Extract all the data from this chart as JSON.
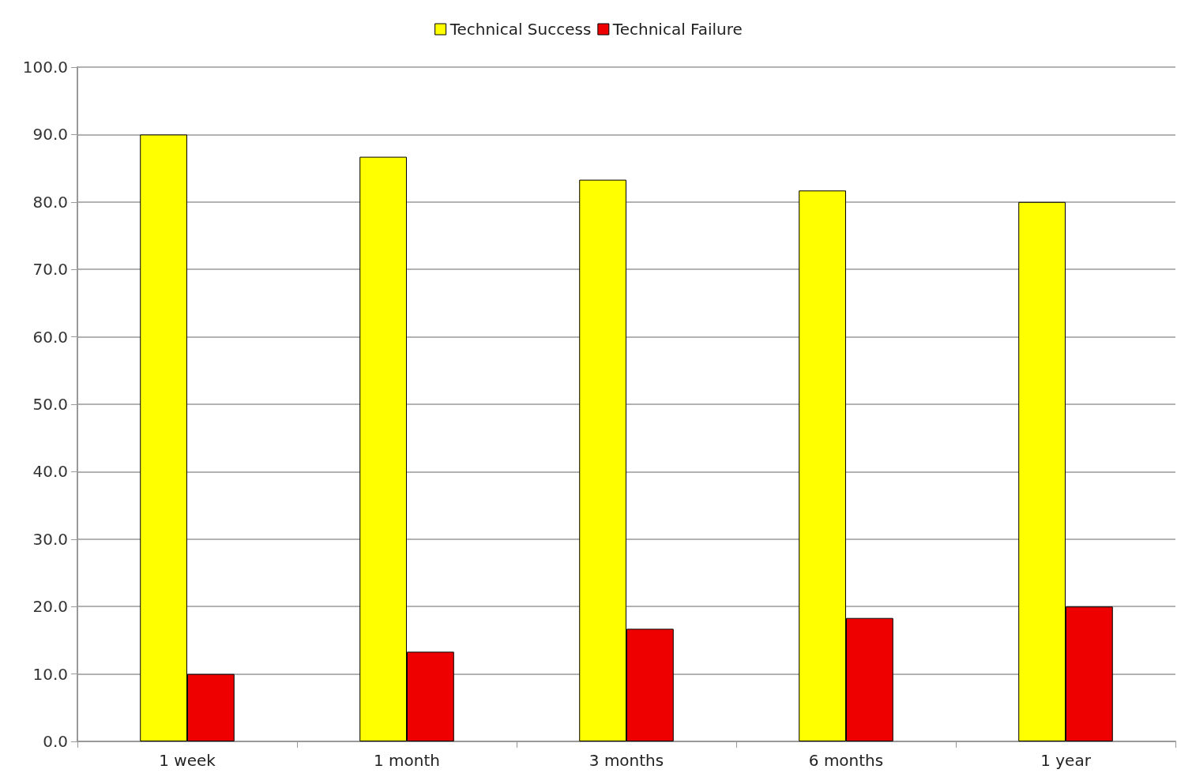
{
  "chart_data": {
    "type": "bar",
    "categories": [
      "1 week",
      "1 month",
      "3 months",
      "6 months",
      "1 year"
    ],
    "series": [
      {
        "name": "Technical Success",
        "color": "#ffff00",
        "values": [
          90.0,
          86.7,
          83.3,
          81.7,
          80.0
        ]
      },
      {
        "name": "Technical Failure",
        "color": "#ee0000",
        "values": [
          10.0,
          13.3,
          16.7,
          18.3,
          20.0
        ]
      }
    ],
    "ylim": [
      0,
      100
    ],
    "yticks": [
      {
        "value": 0,
        "label": "0.0"
      },
      {
        "value": 10,
        "label": "10.0"
      },
      {
        "value": 20,
        "label": "20.0"
      },
      {
        "value": 30,
        "label": "30.0"
      },
      {
        "value": 40,
        "label": "40.0"
      },
      {
        "value": 50,
        "label": "50.0"
      },
      {
        "value": 60,
        "label": "60.0"
      },
      {
        "value": 70,
        "label": "70.0"
      },
      {
        "value": 80,
        "label": "80.0"
      },
      {
        "value": 90,
        "label": "90.0"
      },
      {
        "value": 100,
        "label": "100.0"
      }
    ],
    "grid": "y",
    "legend": "top"
  }
}
